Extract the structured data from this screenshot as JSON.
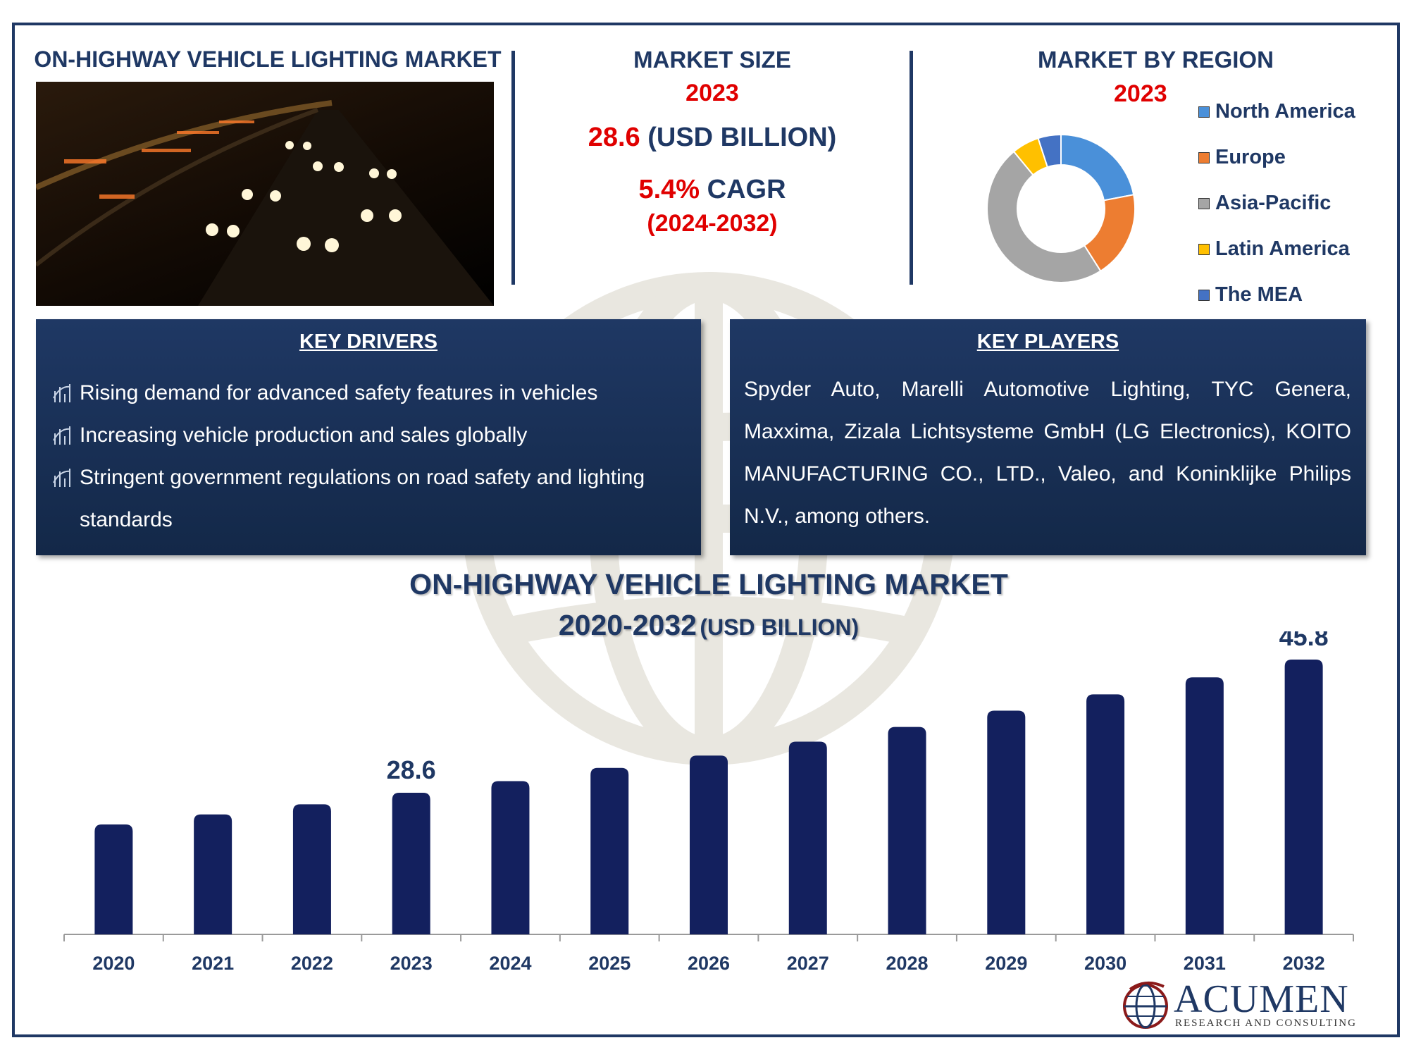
{
  "header": {
    "title": "ON-HIGHWAY VEHICLE LIGHTING MARKET"
  },
  "market_size": {
    "title": "MARKET SIZE",
    "year": "2023",
    "value": "28.6",
    "unit": "(USD BILLION)",
    "cagr_value": "5.4%",
    "cagr_label": "CAGR",
    "period": "(2024-2032)"
  },
  "region": {
    "title": "MARKET BY REGION",
    "year": "2023",
    "items": [
      {
        "label": "North America",
        "color": "#4a90d9",
        "share": 0.22
      },
      {
        "label": "Europe",
        "color": "#ed7d31",
        "share": 0.19
      },
      {
        "label": "Asia-Pacific",
        "color": "#a5a5a5",
        "share": 0.48
      },
      {
        "label": "Latin America",
        "color": "#ffc000",
        "share": 0.06
      },
      {
        "label": "The MEA",
        "color": "#4472c4",
        "share": 0.05
      }
    ]
  },
  "drivers": {
    "title": "KEY DRIVERS",
    "items": [
      "Rising demand for advanced safety features in vehicles",
      "Increasing vehicle production and sales globally",
      "Stringent government regulations on road safety and lighting",
      "standards"
    ]
  },
  "players": {
    "title": "KEY PLAYERS",
    "text": "Spyder Auto, Marelli Automotive Lighting, TYC Genera, Maxxima, Zizala Lichtsysteme GmbH (LG Electronics), KOITO MANUFACTURING CO., LTD., Valeo, and Koninklijke Philips N.V., among others."
  },
  "chart_heading": {
    "title": "ON-HIGHWAY VEHICLE LIGHTING MARKET",
    "sub_years": "2020-2032",
    "sub_unit": "(USD BILLION)"
  },
  "chart_data": {
    "type": "bar",
    "title": "ON-HIGHWAY VEHICLE LIGHTING MARKET 2020-2032 (USD BILLION)",
    "categories": [
      "2020",
      "2021",
      "2022",
      "2023",
      "2024",
      "2025",
      "2026",
      "2027",
      "2028",
      "2029",
      "2030",
      "2031",
      "2032"
    ],
    "values": [
      24.5,
      25.8,
      27.1,
      28.6,
      30.1,
      31.8,
      33.4,
      35.2,
      37.1,
      39.2,
      41.3,
      43.5,
      45.8
    ],
    "data_labels": {
      "2023": "28.6",
      "2032": "45.8"
    },
    "bar_color": "#13205e",
    "ylim": [
      0,
      50
    ],
    "xlabel": "",
    "ylabel": "",
    "grid": false
  },
  "logo": {
    "name": "ACUMEN",
    "tagline": "RESEARCH AND CONSULTING"
  }
}
